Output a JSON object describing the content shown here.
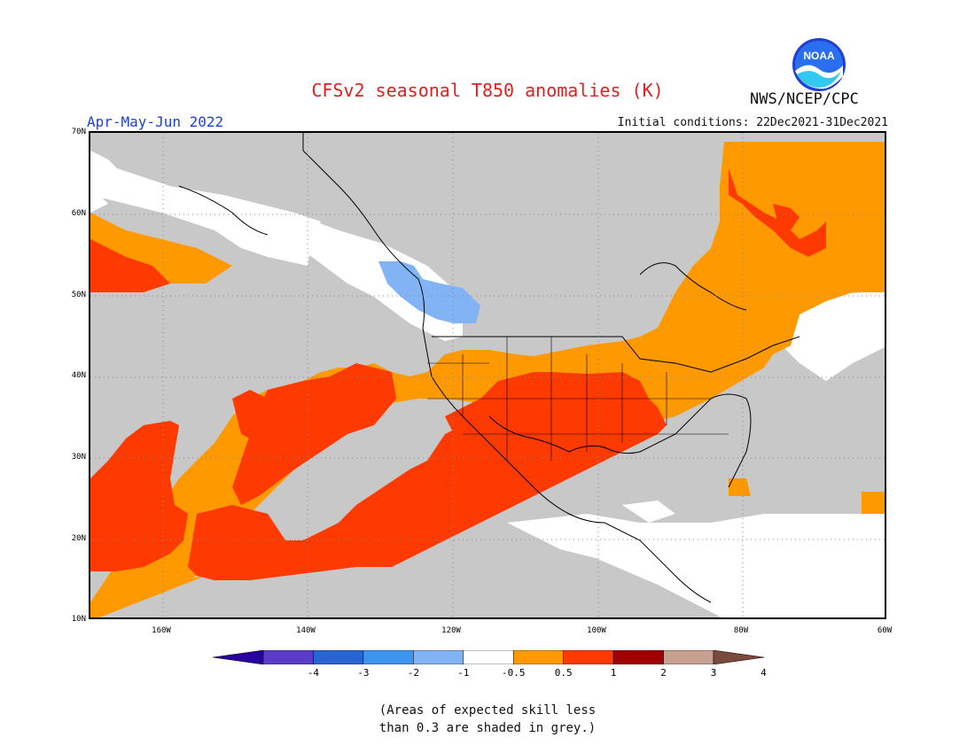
{
  "title": "CFSv2 seasonal T850 anomalies (K)",
  "period": "Apr-May-Jun 2022",
  "initial_conditions": "Initial conditions: 22Dec2021-31Dec2021",
  "agency": "NWS/NCEP/CPC",
  "logo_text": "NOAA",
  "latitude_labels": [
    "70N",
    "60N",
    "50N",
    "40N",
    "30N",
    "20N",
    "10N"
  ],
  "longitude_labels": [
    "160W",
    "140W",
    "120W",
    "100W",
    "80W",
    "60W"
  ],
  "legend": {
    "ticks": [
      "-4",
      "-3",
      "-2",
      "-1",
      "-0.5",
      "0.5",
      "1",
      "2",
      "3",
      "4"
    ],
    "colors": [
      "#2800a0",
      "#5a3cc8",
      "#2864d2",
      "#3c96f0",
      "#82b4f5",
      "#ffffff",
      "#ff9900",
      "#ff3a00",
      "#a00000",
      "#c8a090",
      "#7a4a3c"
    ]
  },
  "note": "(Areas of expected skill less\nthan 0.3 are shaded in grey.)",
  "colors": {
    "skill_grey": "#c8c8c8",
    "near_normal": "#ffffff",
    "warm_0_5_1": "#ff9900",
    "warm_1_2": "#ff3a00",
    "cool_0_5_1": "#82b4f5",
    "title": "#e02020",
    "period": "#1a3fe0"
  }
}
